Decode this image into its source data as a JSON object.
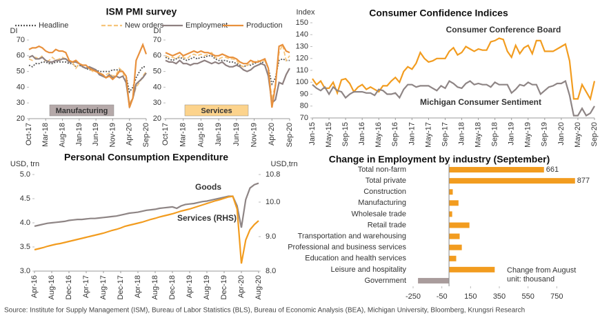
{
  "chart_data": [
    {
      "type": "line",
      "title": "ISM PMI survey",
      "ylabel": "DI",
      "panel_label": "Manufacturing",
      "panel_color": "#b5a9a9",
      "categories": [
        "Oct-17",
        null,
        null,
        null,
        null,
        "Mar-18",
        null,
        null,
        null,
        null,
        "Aug-18",
        null,
        null,
        null,
        null,
        "Jan-19",
        null,
        null,
        null,
        null,
        "Jun-19",
        null,
        null,
        null,
        null,
        "Nov-19",
        null,
        null,
        null,
        null,
        "Apr-20",
        null,
        null,
        null,
        null,
        "Sep-20"
      ],
      "ylim": [
        20,
        70
      ],
      "yticks": [
        20,
        30,
        40,
        50,
        60,
        70
      ],
      "series": [
        {
          "name": "Headline",
          "color": "#555555",
          "style": "dotted",
          "values": [
            54,
            53,
            55,
            55,
            56,
            56,
            55,
            55,
            56,
            56,
            56,
            56,
            55,
            55,
            53,
            54,
            53,
            52,
            51,
            51,
            51,
            50,
            50,
            50,
            50,
            51,
            51,
            51,
            50,
            47,
            37,
            40,
            46,
            50,
            53,
            53
          ]
        },
        {
          "name": "New orders",
          "color": "#f6c47a",
          "style": "dashed",
          "values": [
            58,
            57,
            59,
            58,
            60,
            56,
            57,
            59,
            57,
            58,
            59,
            58,
            57,
            56,
            52,
            55,
            54,
            54,
            52,
            50,
            50,
            49,
            47,
            48,
            49,
            47,
            48,
            52,
            50,
            42,
            30,
            33,
            40,
            43,
            47,
            50
          ]
        },
        {
          "name": "Employment",
          "color": "#8e8080",
          "style": "solid",
          "values": [
            59,
            60,
            58,
            58,
            59,
            57,
            56,
            56,
            57,
            57,
            58,
            58,
            56,
            56,
            56,
            55,
            53,
            52,
            53,
            52,
            51,
            48,
            47,
            46,
            48,
            46,
            47,
            46,
            47,
            43,
            28,
            33,
            42,
            44,
            46,
            49
          ]
        },
        {
          "name": "Production",
          "color": "#e8903c",
          "style": "solid",
          "values": [
            64,
            65,
            65,
            66,
            65,
            63,
            62,
            62,
            64,
            63,
            63,
            62,
            57,
            56,
            57,
            55,
            54,
            54,
            52,
            51,
            50,
            49,
            48,
            46,
            47,
            45,
            47,
            50,
            50,
            47,
            27,
            33,
            57,
            62,
            67,
            61
          ]
        }
      ]
    },
    {
      "type": "line",
      "ylabel": "DI",
      "panel_label": "Services",
      "panel_color": "#fcd38c",
      "categories": [
        "Oct-17",
        null,
        null,
        null,
        null,
        "Mar-18",
        null,
        null,
        null,
        null,
        "Aug-18",
        null,
        null,
        null,
        null,
        "Jan-19",
        null,
        null,
        null,
        null,
        "Jun-19",
        null,
        null,
        null,
        null,
        "Nov-19",
        null,
        null,
        null,
        null,
        "Apr-20",
        null,
        null,
        null,
        null,
        "Sep-20"
      ],
      "ylim": [
        20,
        70
      ],
      "yticks": [
        20,
        30,
        40,
        50,
        60,
        70
      ],
      "series": [
        {
          "color": "#555555",
          "style": "dotted",
          "values": [
            59,
            58,
            57,
            58,
            59,
            58,
            57,
            58,
            59,
            58,
            59,
            59,
            60,
            60,
            58,
            57,
            57,
            57,
            56,
            56,
            55,
            54,
            53,
            54,
            54,
            55,
            56,
            55,
            57,
            52,
            42,
            46,
            57,
            58,
            57,
            57
          ]
        },
        {
          "color": "#f6c47a",
          "style": "dashed",
          "values": [
            60,
            59,
            59,
            58,
            60,
            59,
            58,
            60,
            61,
            60,
            61,
            60,
            61,
            62,
            59,
            58,
            59,
            59,
            58,
            58,
            57,
            54,
            53,
            54,
            55,
            56,
            57,
            56,
            57,
            52,
            32,
            42,
            62,
            67,
            57,
            60
          ]
        },
        {
          "color": "#8e8080",
          "style": "solid",
          "values": [
            57,
            56,
            56,
            55,
            57,
            55,
            55,
            54,
            55,
            55,
            56,
            57,
            56,
            55,
            56,
            55,
            56,
            54,
            53,
            53,
            54,
            53,
            51,
            50,
            51,
            53,
            54,
            55,
            54,
            47,
            30,
            32,
            43,
            42,
            48,
            52
          ]
        },
        {
          "color": "#e8903c",
          "style": "solid",
          "values": [
            62,
            61,
            60,
            61,
            62,
            60,
            61,
            62,
            63,
            62,
            63,
            62,
            62,
            61,
            60,
            60,
            61,
            60,
            59,
            59,
            58,
            56,
            55,
            55,
            57,
            56,
            56,
            57,
            58,
            52,
            27,
            41,
            66,
            67,
            63,
            62
          ]
        }
      ]
    },
    {
      "type": "line",
      "title": "Consumer Confidence Indices",
      "ylabel": "Index",
      "categories": [
        "Jan-15",
        null,
        null,
        null,
        "May-15",
        null,
        null,
        null,
        "Sep-15",
        null,
        null,
        null,
        "Jan-16",
        null,
        null,
        null,
        "May-16",
        null,
        null,
        null,
        "Sep-16",
        null,
        null,
        null,
        "Jan-17",
        null,
        null,
        null,
        "May-17",
        null,
        null,
        null,
        "Sep-17",
        null,
        null,
        null,
        "Jan-18",
        null,
        null,
        null,
        "May-18",
        null,
        null,
        null,
        "Sep-18",
        null,
        null,
        null,
        "Jan-19",
        null,
        null,
        null,
        "May-19",
        null,
        null,
        null,
        "Sep-19",
        null,
        null,
        null,
        "Jan-20",
        null,
        null,
        null,
        "May-20",
        null,
        null,
        null,
        "Sep-20"
      ],
      "ylim": [
        70,
        150
      ],
      "yticks": [
        70,
        80,
        90,
        100,
        110,
        120,
        130,
        140,
        150
      ],
      "series": [
        {
          "name": "Consumer Conference Board",
          "color": "#f29c1f",
          "style": "solid",
          "values": [
            103,
            98,
            101,
            95,
            95,
            100,
            91,
            102,
            103,
            99,
            92,
            96,
            98,
            94,
            96,
            94,
            92,
            97,
            97,
            101,
            104,
            100,
            109,
            113,
            111,
            116,
            125,
            120,
            117,
            118,
            120,
            120,
            120,
            126,
            129,
            123,
            125,
            130,
            128,
            126,
            128,
            127,
            127,
            134,
            135,
            137,
            136,
            126,
            121,
            131,
            124,
            129,
            131,
            124,
            135,
            135,
            126,
            126,
            126,
            128,
            130,
            132,
            118,
            86,
            86,
            98,
            92,
            86,
            101
          ]
        },
        {
          "name": "Michigan Consumer Sentiment",
          "color": "#8e8585",
          "style": "solid",
          "values": [
            98,
            95,
            93,
            96,
            90,
            96,
            93,
            92,
            87,
            90,
            92,
            92,
            92,
            91,
            91,
            89,
            94,
            93,
            90,
            90,
            91,
            87,
            94,
            98,
            98,
            96,
            97,
            97,
            97,
            95,
            93,
            97,
            95,
            101,
            99,
            96,
            95,
            99,
            101,
            98,
            99,
            98,
            98,
            96,
            100,
            98,
            98,
            98,
            91,
            94,
            98,
            97,
            100,
            98,
            98,
            90,
            93,
            96,
            97,
            99,
            99,
            101,
            89,
            72,
            72,
            78,
            72,
            74,
            80
          ]
        }
      ]
    },
    {
      "type": "line",
      "title": "Personal Consumption Expenditure",
      "ylabel": "USD, trn",
      "y2label": "USD,trn",
      "categories": [
        "Apr-16",
        null,
        null,
        null,
        "Aug-16",
        null,
        null,
        null,
        "Dec-16",
        null,
        null,
        null,
        "Apr-17",
        null,
        null,
        null,
        "Aug-17",
        null,
        null,
        null,
        "Dec-17",
        null,
        null,
        null,
        "Apr-18",
        null,
        null,
        null,
        "Aug-18",
        null,
        null,
        null,
        "Dec-18",
        null,
        null,
        null,
        "Apr-19",
        null,
        null,
        null,
        "Aug-19",
        null,
        null,
        null,
        "Dec-19",
        null,
        null,
        null,
        "Apr-20",
        null,
        null,
        null,
        "Aug-20"
      ],
      "ylim": [
        3,
        5
      ],
      "yticks": [
        {
          "value": 3,
          "label": "3.0"
        },
        {
          "value": 3.5,
          "label": "3.5"
        },
        {
          "value": 4,
          "label": "4.0"
        },
        {
          "value": 4.5,
          "label": "4.5"
        },
        {
          "value": 5,
          "label": "5.0"
        }
      ],
      "y2lim": [
        8,
        10.8
      ],
      "y2ticks": [
        {
          "value": 8,
          "label": "8.0"
        },
        {
          "value": 9,
          "label": "9.0"
        },
        {
          "value": 10,
          "label": "10.0"
        },
        10.8
      ],
      "series": [
        {
          "name": "Goods",
          "color": "#8e8585",
          "style": "solid",
          "values": [
            3.93,
            3.95,
            3.97,
            3.99,
            4.0,
            4.01,
            4.02,
            4.03,
            4.05,
            4.06,
            4.07,
            4.07,
            4.08,
            4.09,
            4.09,
            4.1,
            4.11,
            4.12,
            4.13,
            4.14,
            4.16,
            4.18,
            4.2,
            4.21,
            4.22,
            4.24,
            4.26,
            4.27,
            4.28,
            4.3,
            4.31,
            4.32,
            4.33,
            4.3,
            4.35,
            4.38,
            4.39,
            4.4,
            4.42,
            4.44,
            4.45,
            4.47,
            4.49,
            4.51,
            4.53,
            4.55,
            4.55,
            4.35,
            3.9,
            4.48,
            4.72,
            4.79,
            4.82
          ]
        },
        {
          "name": "Services (RHS)",
          "color": "#f29c1f",
          "style": "solid",
          "axis": "y2",
          "values": [
            8.62,
            8.65,
            8.68,
            8.72,
            8.75,
            8.78,
            8.8,
            8.83,
            8.86,
            8.89,
            8.92,
            8.95,
            8.98,
            9.01,
            9.04,
            9.07,
            9.1,
            9.14,
            9.18,
            9.21,
            9.25,
            9.3,
            9.33,
            9.36,
            9.39,
            9.42,
            9.46,
            9.5,
            9.53,
            9.57,
            9.6,
            9.63,
            9.66,
            9.7,
            9.74,
            9.77,
            9.8,
            9.84,
            9.88,
            9.92,
            9.96,
            10.0,
            10.04,
            10.07,
            10.11,
            10.15,
            10.17,
            9.8,
            8.22,
            8.9,
            9.2,
            9.35,
            9.46
          ]
        }
      ]
    },
    {
      "type": "hbar",
      "title": "Change in Employment by industry (September)",
      "categories": [
        "Total non-farm",
        "Total private",
        "Construction",
        "Manufacturing",
        "Wholesale trade",
        "Retail trade",
        "Transportation and warehousing",
        "Professional and business services",
        "Education and health services",
        "Leisure and hospitality",
        "Government"
      ],
      "values": [
        661,
        877,
        26,
        66,
        22,
        142,
        74,
        89,
        50,
        318,
        -216
      ],
      "value_labels": [
        "661",
        "877",
        null,
        null,
        null,
        null,
        null,
        null,
        null,
        null,
        null
      ],
      "xlim": [
        -250,
        950
      ],
      "xticks": [
        -250,
        -50,
        150,
        350,
        550,
        750
      ],
      "color": "#f29c1f",
      "negative_color": "#a99c9c",
      "annotations": [
        "Change from August",
        "unit: thousand"
      ]
    }
  ],
  "source": "Source: Institute for Supply Management (ISM), Bureau of Labor Statistics (BLS), Bureau of Economic Analysis (BEA), Michigan University, Bloomberg, Krungsri Research"
}
